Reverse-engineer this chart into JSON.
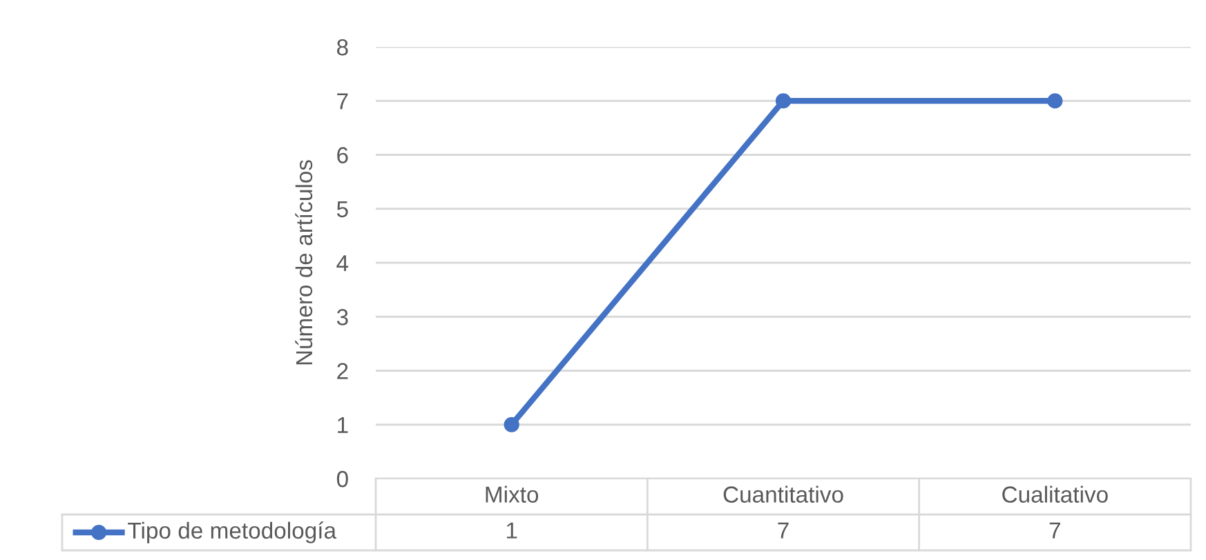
{
  "chart_data": {
    "type": "line",
    "ylabel": "Número de artículos",
    "categories": [
      "Mixto",
      "Cuantitativo",
      "Cualitativo"
    ],
    "series": [
      {
        "name": "Tipo de metodología",
        "color": "#4472c4",
        "values": [
          1,
          7,
          7
        ]
      }
    ],
    "ylim": [
      0,
      8
    ],
    "yticks": [
      0,
      1,
      2,
      3,
      4,
      5,
      6,
      7,
      8
    ],
    "grid": "y",
    "legend": "bottom",
    "marker": "circle",
    "line_style": "solid",
    "data_labels": true
  }
}
